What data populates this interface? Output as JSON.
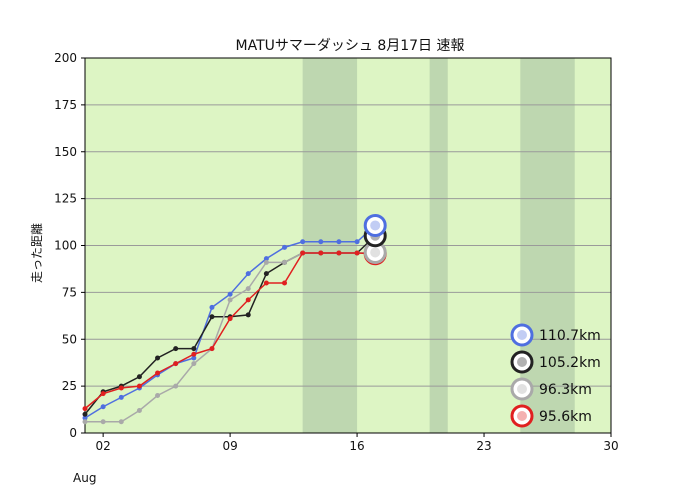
{
  "chart_data": {
    "type": "line",
    "title": "MATUサマーダッシュ 8月17日 速報",
    "xlabel": "",
    "ylabel": "走った距離",
    "x_month_label": "Aug",
    "xlim": [
      1,
      30
    ],
    "ylim": [
      0,
      200
    ],
    "yticks": [
      0,
      25,
      50,
      75,
      100,
      125,
      150,
      175,
      200
    ],
    "xticks": [
      {
        "day": 2,
        "label": "02"
      },
      {
        "day": 9,
        "label": "09"
      },
      {
        "day": 16,
        "label": "16"
      },
      {
        "day": 23,
        "label": "23"
      },
      {
        "day": 30,
        "label": "30"
      }
    ],
    "grid": true,
    "plot_background": "#ddf5c4",
    "shaded_ranges": [
      [
        13,
        16
      ],
      [
        20,
        21
      ],
      [
        25,
        28
      ]
    ],
    "shaded_color": "#bed7b0",
    "series": [
      {
        "color": "#4f6fe0",
        "end_label": "110.7km",
        "x": [
          1,
          2,
          3,
          4,
          5,
          6,
          7,
          8,
          9,
          10,
          11,
          12,
          13,
          14,
          15,
          16,
          17
        ],
        "y": [
          8,
          14,
          19,
          24,
          31,
          37,
          40,
          67,
          74,
          85,
          93,
          99,
          102,
          102,
          102,
          102,
          110.7
        ]
      },
      {
        "color": "#222222",
        "end_label": "105.2km",
        "x": [
          1,
          2,
          3,
          4,
          5,
          6,
          7,
          8,
          9,
          10,
          11,
          12,
          13,
          14,
          15,
          16,
          17
        ],
        "y": [
          10,
          22,
          25,
          30,
          40,
          45,
          45,
          62,
          62,
          63,
          85,
          91,
          96,
          96,
          96,
          96,
          105.2
        ]
      },
      {
        "color": "#a9a9a9",
        "end_label": "96.3km",
        "x": [
          1,
          2,
          3,
          4,
          5,
          6,
          7,
          8,
          9,
          10,
          11,
          12,
          13,
          14,
          15,
          16,
          17
        ],
        "y": [
          6,
          6,
          6,
          12,
          20,
          25,
          37,
          45,
          71,
          77,
          91,
          91,
          96,
          96,
          96,
          96,
          96.3
        ]
      },
      {
        "color": "#e02020",
        "end_label": "95.6km",
        "x": [
          1,
          2,
          3,
          4,
          5,
          6,
          7,
          8,
          9,
          10,
          11,
          12,
          13,
          14,
          15,
          16,
          17
        ],
        "y": [
          13,
          21,
          24,
          25,
          32,
          37,
          42,
          45,
          61,
          71,
          80,
          80,
          96,
          96,
          96,
          96,
          95.6
        ]
      }
    ]
  }
}
